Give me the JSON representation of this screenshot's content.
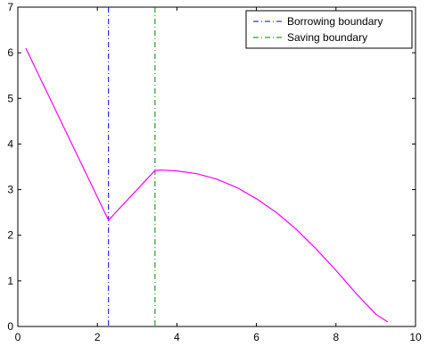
{
  "chart_data": {
    "type": "line",
    "title": "",
    "xlabel": "",
    "ylabel": "",
    "xlim": [
      0,
      10
    ],
    "ylim": [
      0,
      7
    ],
    "xticks": [
      0,
      2,
      4,
      6,
      8,
      10
    ],
    "xtick_labels": [
      "0",
      "2",
      "4",
      "6",
      "8",
      "10"
    ],
    "yticks": [
      0,
      1,
      2,
      3,
      4,
      5,
      6,
      7
    ],
    "ytick_labels": [
      "0",
      "1",
      "2",
      "3",
      "4",
      "5",
      "6",
      "7"
    ],
    "grid": false,
    "legend_position": "top-right",
    "series": [
      {
        "color": "#ff00ff",
        "style": "solid",
        "x": [
          0.2,
          2.28,
          3.45,
          3.6,
          4.0,
          4.5,
          5.0,
          5.5,
          6.0,
          6.5,
          7.0,
          7.5,
          8.0,
          8.5,
          9.0,
          9.3
        ],
        "y": [
          6.1,
          2.33,
          3.42,
          3.43,
          3.41,
          3.35,
          3.23,
          3.05,
          2.8,
          2.5,
          2.13,
          1.7,
          1.23,
          0.73,
          0.27,
          0.1
        ]
      }
    ],
    "vlines": [
      {
        "name": "Borrowing boundary",
        "x": 2.28,
        "color": "#0000ff",
        "style": "dash-dot"
      },
      {
        "name": "Saving boundary",
        "x": 3.45,
        "color": "#008000",
        "style": "dash-dot"
      }
    ]
  }
}
